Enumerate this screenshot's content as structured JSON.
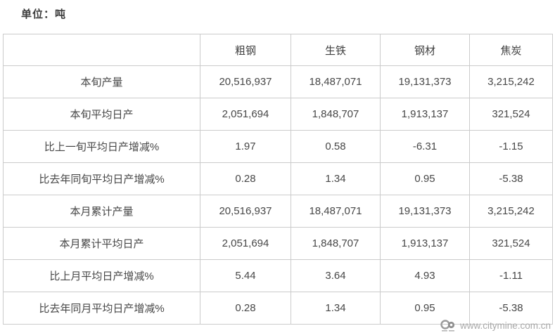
{
  "page": {
    "unit_label": "单位：吨"
  },
  "table": {
    "columns": [
      "粗钢",
      "生铁",
      "钢材",
      "焦炭"
    ],
    "rows": [
      {
        "label": "本旬产量",
        "values": [
          "20,516,937",
          "18,487,071",
          "19,131,373",
          "3,215,242"
        ]
      },
      {
        "label": "本旬平均日产",
        "values": [
          "2,051,694",
          "1,848,707",
          "1,913,137",
          "321,524"
        ]
      },
      {
        "label": "比上一旬平均日产增减%",
        "values": [
          "1.97",
          "0.58",
          "-6.31",
          "-1.15"
        ]
      },
      {
        "label": "比去年同旬平均日产增减%",
        "values": [
          "0.28",
          "1.34",
          "0.95",
          "-5.38"
        ]
      },
      {
        "label": "本月累计产量",
        "values": [
          "20,516,937",
          "18,487,071",
          "19,131,373",
          "3,215,242"
        ]
      },
      {
        "label": "本月累计平均日产",
        "values": [
          "2,051,694",
          "1,848,707",
          "1,913,137",
          "321,524"
        ]
      },
      {
        "label": "比上月平均日产增减%",
        "values": [
          "5.44",
          "3.64",
          "4.93",
          "-1.11"
        ]
      },
      {
        "label": "比去年同月平均日产增减%",
        "values": [
          "0.28",
          "1.34",
          "0.95",
          "-5.38"
        ]
      }
    ]
  },
  "watermark": {
    "logo_icon": "citymine-logo",
    "text": "www.citymine.com.cn"
  },
  "colors": {
    "text": "#474747",
    "border": "#cbcbcb",
    "watermark": "#a9a9a9"
  },
  "chart_data": {
    "type": "table",
    "title": "单位：吨",
    "columns": [
      "粗钢",
      "生铁",
      "钢材",
      "焦炭"
    ],
    "rows": [
      {
        "label": "本旬产量",
        "values": [
          20516937,
          18487071,
          19131373,
          3215242
        ]
      },
      {
        "label": "本旬平均日产",
        "values": [
          2051694,
          1848707,
          1913137,
          321524
        ]
      },
      {
        "label": "比上一旬平均日产增减%",
        "values": [
          1.97,
          0.58,
          -6.31,
          -1.15
        ]
      },
      {
        "label": "比去年同旬平均日产增减%",
        "values": [
          0.28,
          1.34,
          0.95,
          -5.38
        ]
      },
      {
        "label": "本月累计产量",
        "values": [
          20516937,
          18487071,
          19131373,
          3215242
        ]
      },
      {
        "label": "本月累计平均日产",
        "values": [
          2051694,
          1848707,
          1913137,
          321524
        ]
      },
      {
        "label": "比上月平均日产增减%",
        "values": [
          5.44,
          3.64,
          4.93,
          -1.11
        ]
      },
      {
        "label": "比去年同月平均日产增减%",
        "values": [
          0.28,
          1.34,
          0.95,
          -5.38
        ]
      }
    ]
  }
}
